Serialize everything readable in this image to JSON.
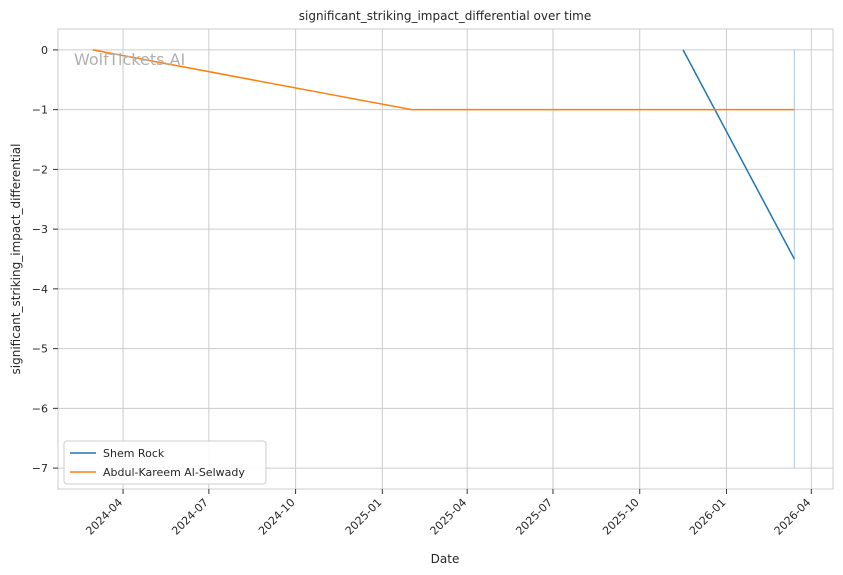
{
  "chart_data": {
    "type": "line",
    "title": "significant_striking_impact_differential over time",
    "xlabel": "Date",
    "ylabel": "significant_striking_impact_differential",
    "watermark": "WolfTickets.AI",
    "x_ticks": [
      "2024-04",
      "2024-07",
      "2024-10",
      "2025-01",
      "2025-04",
      "2025-07",
      "2025-10",
      "2026-01",
      "2026-04"
    ],
    "y_ticks": [
      0,
      -1,
      -2,
      -3,
      -4,
      -5,
      -6,
      -7
    ],
    "ylim": [
      -7.35,
      0.35
    ],
    "xlim": [
      "2024-01-23",
      "2026-04-24"
    ],
    "grid": true,
    "legend_position": "lower-left",
    "series": [
      {
        "name": "Shem Rock",
        "color": "#1f77b4",
        "points": [
          {
            "x": "2025-11-16",
            "y": 0
          },
          {
            "x": "2026-03-14",
            "y": -3.5
          }
        ]
      },
      {
        "name": "Abdul-Kareem Al-Selwady",
        "color": "#ff7f0e",
        "points": [
          {
            "x": "2024-02-29",
            "y": 0
          },
          {
            "x": "2025-02-01",
            "y": -1
          },
          {
            "x": "2026-03-14",
            "y": -1
          }
        ]
      }
    ],
    "reference_line": {
      "x": "2026-03-14",
      "y_from": 0,
      "y_to": -7,
      "color": "#aec7e8"
    }
  }
}
